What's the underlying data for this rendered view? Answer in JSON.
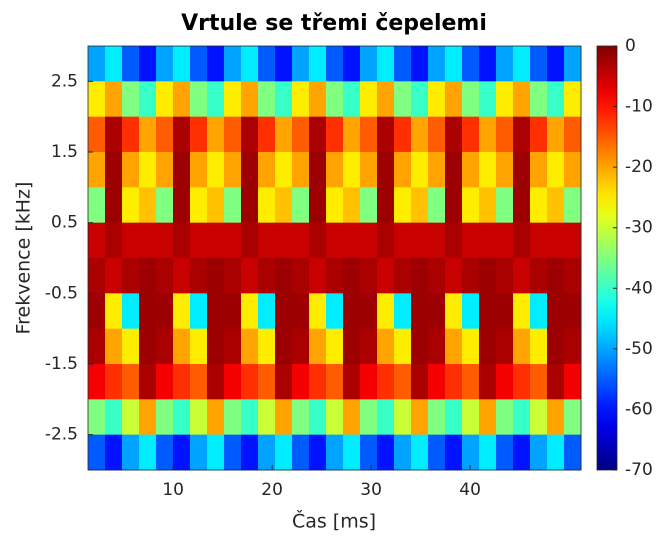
{
  "chart_data": {
    "type": "heatmap",
    "title": "Vrtule se třemi čepelemi",
    "xlabel": "Čas [ms]",
    "ylabel": "Frekvence [kHz]",
    "xlim": [
      1.4,
      51.2
    ],
    "ylim": [
      -3,
      3
    ],
    "xticks": [
      10,
      20,
      30,
      40
    ],
    "yticks": [
      2.5,
      1.5,
      0.5,
      -0.5,
      -1.5,
      -2.5
    ],
    "clim": [
      -70,
      0
    ],
    "cticks": [
      0,
      -10,
      -20,
      -30,
      -40,
      -50,
      -60,
      -70
    ],
    "colormap": "jet",
    "z": [
      [
        -50,
        -45,
        -55,
        -60,
        -50,
        -45,
        -55,
        -60,
        -50,
        -45,
        -55,
        -60,
        -50,
        -45,
        -55,
        -60,
        -50,
        -45,
        -55,
        -60,
        -50,
        -45,
        -55,
        -60,
        -50,
        -45,
        -55,
        -60,
        -50
      ],
      [
        -25,
        -20,
        -35,
        -40,
        -25,
        -20,
        -35,
        -40,
        -25,
        -20,
        -35,
        -40,
        -25,
        -20,
        -35,
        -40,
        -25,
        -20,
        -35,
        -40,
        -25,
        -20,
        -35,
        -40,
        -25,
        -20,
        -35,
        -40,
        -25
      ],
      [
        -15,
        -3,
        -12,
        -20,
        -15,
        -3,
        -12,
        -20,
        -15,
        -3,
        -12,
        -20,
        -15,
        -3,
        -12,
        -20,
        -15,
        -3,
        -12,
        -20,
        -15,
        -3,
        -12,
        -20,
        -15,
        -3,
        -12,
        -20,
        -15
      ],
      [
        -20,
        -2,
        -20,
        -25,
        -20,
        -2,
        -20,
        -25,
        -20,
        -2,
        -20,
        -25,
        -20,
        -2,
        -20,
        -25,
        -20,
        -2,
        -20,
        -25,
        -20,
        -2,
        -20,
        -25,
        -20,
        -2,
        -20,
        -25,
        -20
      ],
      [
        -35,
        -2,
        -25,
        -22,
        -35,
        -2,
        -25,
        -22,
        -35,
        -2,
        -25,
        -22,
        -35,
        -2,
        -25,
        -22,
        -35,
        -2,
        -25,
        -22,
        -35,
        -2,
        -25,
        -22,
        -35,
        -2,
        -25,
        -22,
        -35
      ],
      [
        -5,
        -3,
        -5,
        -5,
        -5,
        -3,
        -5,
        -5,
        -5,
        -3,
        -5,
        -5,
        -5,
        -3,
        -5,
        -5,
        -5,
        -3,
        -5,
        -5,
        -5,
        -3,
        -5,
        -5,
        -5,
        -3,
        -5,
        -5,
        -5
      ],
      [
        -3,
        -5,
        -3,
        -2,
        -3,
        -5,
        -3,
        -2,
        -3,
        -5,
        -3,
        -2,
        -3,
        -5,
        -3,
        -2,
        -3,
        -5,
        -3,
        -2,
        -3,
        -5,
        -3,
        -2,
        -3,
        -5,
        -3,
        -2,
        -3
      ],
      [
        -2,
        -25,
        -45,
        -2,
        -2,
        -25,
        -45,
        -2,
        -2,
        -25,
        -45,
        -2,
        -2,
        -25,
        -45,
        -2,
        -2,
        -25,
        -45,
        -2,
        -2,
        -25,
        -45,
        -2,
        -2,
        -25,
        -45,
        -2,
        -2
      ],
      [
        -3,
        -20,
        -25,
        -2,
        -3,
        -20,
        -25,
        -2,
        -3,
        -20,
        -25,
        -2,
        -3,
        -20,
        -25,
        -2,
        -3,
        -20,
        -25,
        -2,
        -3,
        -20,
        -25,
        -2,
        -3,
        -20,
        -25,
        -2,
        -3
      ],
      [
        -8,
        -12,
        -15,
        -3,
        -8,
        -12,
        -15,
        -3,
        -8,
        -12,
        -15,
        -3,
        -8,
        -12,
        -15,
        -3,
        -8,
        -12,
        -15,
        -3,
        -8,
        -12,
        -15,
        -3,
        -8,
        -12,
        -15,
        -3,
        -8
      ],
      [
        -35,
        -40,
        -30,
        -20,
        -35,
        -40,
        -30,
        -20,
        -35,
        -40,
        -30,
        -20,
        -35,
        -40,
        -30,
        -20,
        -35,
        -40,
        -30,
        -20,
        -35,
        -40,
        -30,
        -20,
        -35,
        -40,
        -30,
        -20,
        -35
      ],
      [
        -55,
        -60,
        -50,
        -45,
        -55,
        -60,
        -50,
        -45,
        -55,
        -60,
        -50,
        -45,
        -55,
        -60,
        -50,
        -45,
        -55,
        -60,
        -50,
        -45,
        -55,
        -60,
        -50,
        -45,
        -55,
        -60,
        -50,
        -45,
        -55
      ]
    ]
  }
}
